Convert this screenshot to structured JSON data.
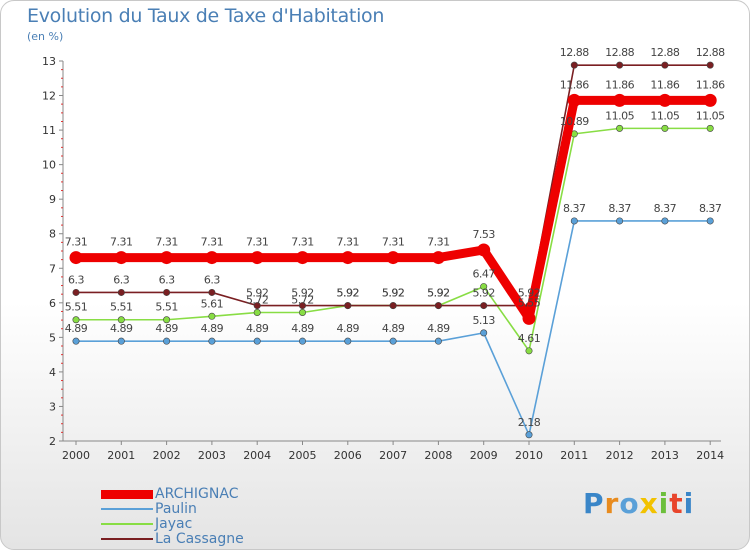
{
  "title": "Evolution du Taux de Taxe d'Habitation",
  "unit_label": "(en %)",
  "brand": "Proxiti",
  "chart_data": {
    "type": "line",
    "title": "Evolution du Taux de Taxe d'Habitation",
    "ylabel": "(en %)",
    "xlabel": "",
    "x": [
      "2000",
      "2001",
      "2002",
      "2003",
      "2004",
      "2005",
      "2006",
      "2007",
      "2008",
      "2009",
      "2010",
      "2011",
      "2012",
      "2013",
      "2014"
    ],
    "y_ticks": [
      2,
      3,
      4,
      5,
      6,
      7,
      8,
      9,
      10,
      11,
      12,
      13
    ],
    "ylim": [
      2,
      13
    ],
    "series": [
      {
        "name": "ARCHIGNAC",
        "color": "#ee0000",
        "values": [
          7.31,
          7.31,
          7.31,
          7.31,
          7.31,
          7.31,
          7.31,
          7.31,
          7.31,
          7.53,
          5.55,
          11.86,
          11.86,
          11.86,
          11.86
        ],
        "labels": [
          "7.31",
          "7.31",
          "7.31",
          "7.31",
          "7.31",
          "7.31",
          "7.31",
          "7.31",
          "7.31",
          "7.53",
          "5.55",
          "11.86",
          "11.86",
          "11.86",
          "11.86"
        ]
      },
      {
        "name": "Paulin",
        "color": "#5aa0d8",
        "values": [
          4.89,
          4.89,
          4.89,
          4.89,
          4.89,
          4.89,
          4.89,
          4.89,
          4.89,
          5.13,
          2.18,
          8.37,
          8.37,
          8.37,
          8.37
        ],
        "labels": [
          "4.89",
          "4.89",
          "4.89",
          "4.89",
          "4.89",
          "4.89",
          "4.89",
          "4.89",
          "4.89",
          "5.13",
          "2.18",
          "8.37",
          "8.37",
          "8.37",
          "8.37"
        ]
      },
      {
        "name": "Jayac",
        "color": "#88dd44",
        "values": [
          5.51,
          5.51,
          5.51,
          5.61,
          5.72,
          5.72,
          5.92,
          5.92,
          5.92,
          6.47,
          4.61,
          10.89,
          11.05,
          11.05,
          11.05
        ],
        "labels": [
          "5.51",
          "5.51",
          "5.51",
          "5.61",
          "5.72",
          "5.72",
          "5.92",
          "5.92",
          "5.92",
          "6.47",
          "4.61",
          "10.89",
          "11.05",
          "11.05",
          "11.05"
        ]
      },
      {
        "name": "La Cassagne",
        "color": "#7a1f22",
        "values": [
          6.3,
          6.3,
          6.3,
          6.3,
          5.92,
          5.92,
          5.92,
          5.92,
          5.92,
          5.92,
          5.92,
          12.88,
          12.88,
          12.88,
          12.88
        ],
        "labels": [
          "6.3",
          "6.3",
          "6.3",
          "6.3",
          "5.92",
          "5.92",
          "5.92",
          "5.92",
          "5.92",
          "5.92",
          "5.92",
          "12.88",
          "12.88",
          "12.88",
          "12.88"
        ]
      }
    ],
    "legend": "bottom-left",
    "grid": false
  }
}
